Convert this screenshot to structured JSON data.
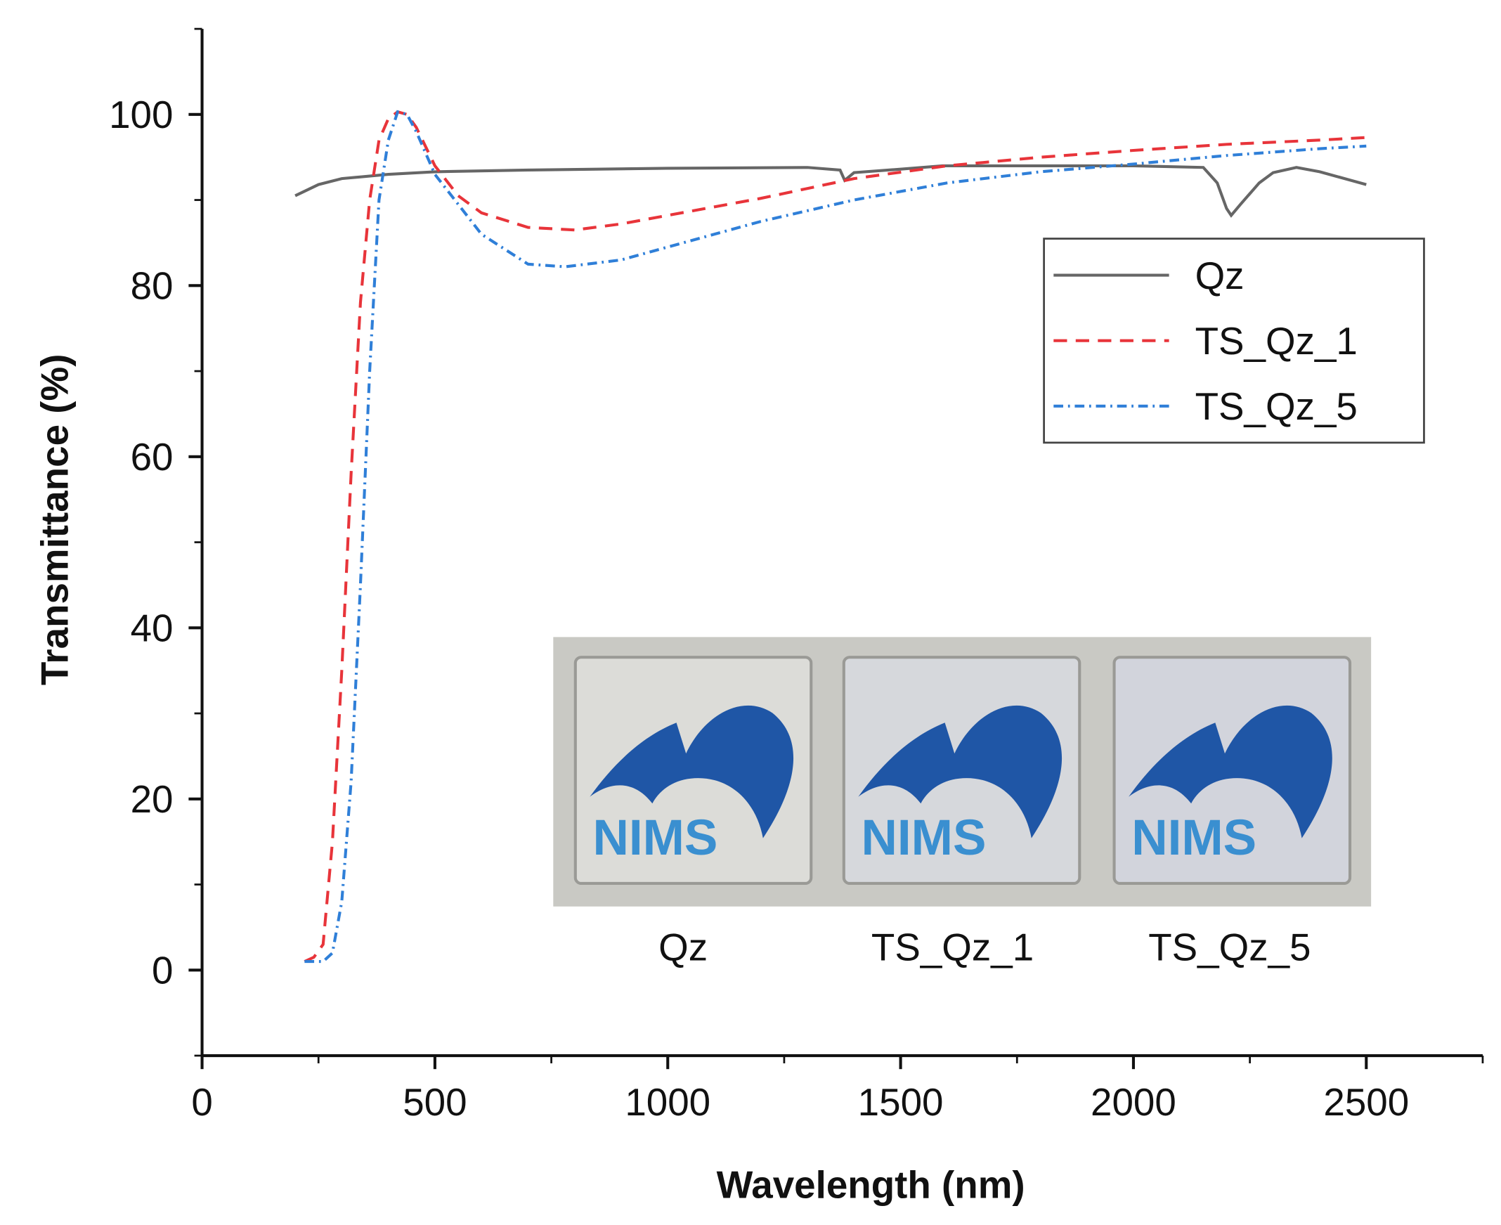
{
  "chart_data": {
    "type": "line",
    "xlabel": "Wavelength (nm)",
    "ylabel": "Transmittance (%)",
    "xlim": [
      0,
      2750
    ],
    "ylim": [
      -10,
      110
    ],
    "xticks": [
      0,
      500,
      1000,
      1500,
      2000,
      2500
    ],
    "yticks": [
      0,
      20,
      40,
      60,
      80,
      100
    ],
    "grid": false,
    "legend": "upper right",
    "series": [
      {
        "name": "Qz",
        "color": "#666666",
        "style": "solid",
        "x": [
          200,
          250,
          300,
          400,
          500,
          700,
          1000,
          1300,
          1370,
          1380,
          1400,
          1500,
          1590,
          1700,
          2000,
          2150,
          2180,
          2200,
          2210,
          2230,
          2270,
          2300,
          2350,
          2400,
          2500
        ],
        "values": [
          90.5,
          91.8,
          92.5,
          93.0,
          93.3,
          93.5,
          93.7,
          93.8,
          93.5,
          92.3,
          93.2,
          93.6,
          94,
          94,
          94,
          93.8,
          92,
          89,
          88.2,
          89.5,
          92,
          93.2,
          93.8,
          93.3,
          91.8
        ]
      },
      {
        "name": "TS_Qz_1",
        "color": "#e8343a",
        "style": "dashed",
        "x": [
          220,
          240,
          260,
          280,
          300,
          320,
          340,
          360,
          380,
          400,
          420,
          440,
          460,
          500,
          550,
          600,
          700,
          800,
          900,
          1000,
          1200,
          1400,
          1600,
          1800,
          2000,
          2200,
          2400,
          2500
        ],
        "values": [
          1,
          1.5,
          3,
          15,
          35,
          58,
          78,
          90,
          97,
          99.5,
          100.3,
          100,
          98.5,
          94,
          90.5,
          88.5,
          86.8,
          86.5,
          87.2,
          88.2,
          90.2,
          92.5,
          94,
          95,
          95.8,
          96.5,
          97,
          97.3
        ]
      },
      {
        "name": "TS_Qz_5",
        "color": "#2f7fd8",
        "style": "dashdot",
        "x": [
          220,
          260,
          280,
          300,
          320,
          340,
          360,
          380,
          400,
          420,
          440,
          460,
          500,
          600,
          700,
          780,
          900,
          1000,
          1200,
          1400,
          1600,
          1800,
          2000,
          2200,
          2400,
          2500
        ],
        "values": [
          1,
          1,
          2,
          8,
          22,
          45,
          70,
          90,
          97,
          100.3,
          100,
          98,
          93,
          86,
          82.5,
          82.2,
          83,
          84.5,
          87.5,
          90,
          92,
          93.3,
          94.2,
          95.2,
          96,
          96.3
        ]
      }
    ],
    "inset_labels": [
      "Qz",
      "TS_Qz_1",
      "TS_Qz_5"
    ],
    "inset_logo_text": "NIMS"
  }
}
